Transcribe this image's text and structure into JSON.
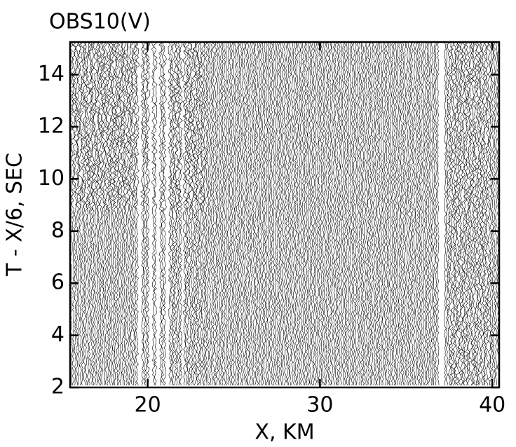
{
  "chart_data": {
    "type": "seismic",
    "title": "OBS10(V)",
    "x_label": "X, KM",
    "y_label": "T - X/6, SEC",
    "xlim": [
      15.5,
      40.4
    ],
    "xticks": [
      20,
      30,
      40
    ],
    "ylim": [
      2,
      15.25
    ],
    "yticks": [
      2,
      4,
      6,
      8,
      10,
      12,
      14
    ]
  }
}
